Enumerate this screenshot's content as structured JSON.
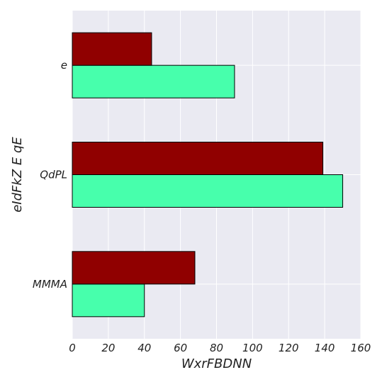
{
  "chart_data": {
    "type": "bar",
    "orientation": "horizontal",
    "title": "",
    "xlabel": "WxrFBDNN",
    "ylabel": "eIdFkZ E qE",
    "categories": [
      "MMMA",
      "QdPL",
      "e"
    ],
    "series": [
      {
        "color": "#47ffac",
        "values": [
          40,
          150,
          90
        ]
      },
      {
        "color": "#900000",
        "values": [
          68,
          139,
          44
        ]
      }
    ],
    "xlim": [
      0,
      160
    ],
    "xticks": [
      0,
      20,
      40,
      60,
      80,
      100,
      120,
      140,
      160
    ],
    "grid": true,
    "legend": "none",
    "colors": {
      "plot_background": "#eaeaf2",
      "grid": "#ffffff",
      "bar_edge": "#000000"
    }
  }
}
